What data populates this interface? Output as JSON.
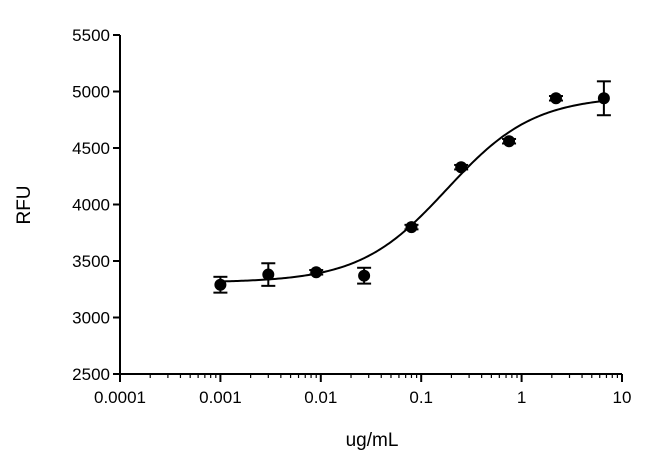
{
  "chart_data": {
    "type": "scatter",
    "title": "",
    "xlabel": "ug/mL",
    "ylabel": "RFU",
    "x_scale": "log",
    "xlim": [
      0.0001,
      10
    ],
    "ylim": [
      2500,
      5500
    ],
    "x_ticks": [
      0.0001,
      0.001,
      0.01,
      0.1,
      1,
      10
    ],
    "x_tick_labels": [
      "0.0001",
      "0.001",
      "0.01",
      "0.1",
      "1",
      "10"
    ],
    "y_ticks": [
      2500,
      3000,
      3500,
      4000,
      4500,
      5000,
      5500
    ],
    "y_tick_labels": [
      "2500",
      "3000",
      "3500",
      "4000",
      "4500",
      "5000",
      "5500"
    ],
    "grid": false,
    "legend": "none",
    "color": "#000000",
    "series": [
      {
        "points": [
          {
            "x": 0.001,
            "y": 3290,
            "err": 70
          },
          {
            "x": 0.003,
            "y": 3380,
            "err": 100
          },
          {
            "x": 0.009,
            "y": 3400,
            "err": 20
          },
          {
            "x": 0.027,
            "y": 3370,
            "err": 70
          },
          {
            "x": 0.08,
            "y": 3800,
            "err": 20
          },
          {
            "x": 0.25,
            "y": 4330,
            "err": 20
          },
          {
            "x": 0.75,
            "y": 4560,
            "err": 20
          },
          {
            "x": 2.2,
            "y": 4940,
            "err": 20
          },
          {
            "x": 6.6,
            "y": 4940,
            "err": 150
          }
        ]
      }
    ],
    "fit": {
      "model": "four-parameter logistic",
      "bottom": 3310,
      "top": 4960,
      "ec50": 0.18,
      "hill": 1.0
    }
  }
}
